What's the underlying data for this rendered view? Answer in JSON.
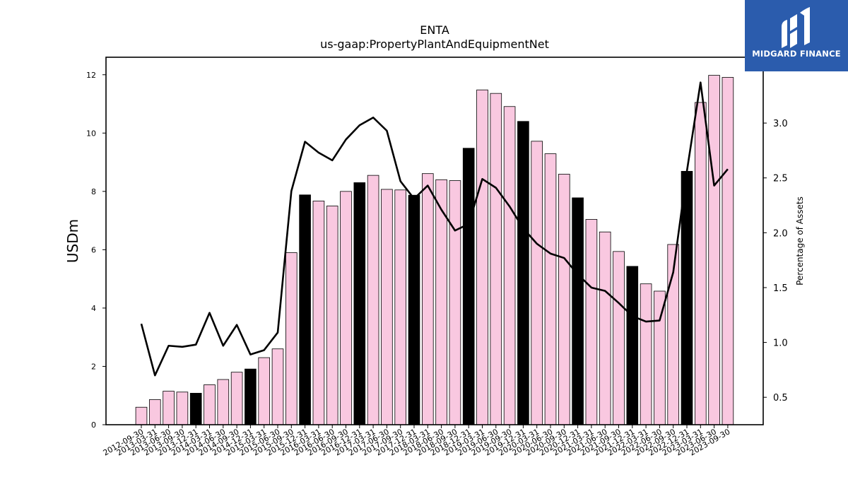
{
  "chart_data": {
    "type": "bar",
    "title": "ENTA",
    "subtitle": "us-gaap:PropertyPlantAndEquipmentNet",
    "ylabel": "USDm",
    "y2label": "Percentage of Assets",
    "ylim": [
      0,
      12.6
    ],
    "y2lim": [
      0.25,
      3.6
    ],
    "yticks": [
      0,
      2,
      4,
      6,
      8,
      10,
      12
    ],
    "y2ticks": [
      "0.5",
      "1.0",
      "1.5",
      "2.0",
      "2.5",
      "3.0"
    ],
    "grid": false,
    "categories": [
      "2012-09-30",
      "2013-03-31",
      "2013-06-30",
      "2013-09-30",
      "2013-12-31",
      "2014-03-31",
      "2014-06-30",
      "2014-09-30",
      "2014-12-31",
      "2015-03-31",
      "2015-06-30",
      "2015-09-30",
      "2015-12-31",
      "2016-03-31",
      "2016-06-30",
      "2016-09-30",
      "2016-12-31",
      "2017-03-31",
      "2017-06-30",
      "2017-09-30",
      "2017-12-31",
      "2018-03-31",
      "2018-06-30",
      "2018-09-30",
      "2018-12-31",
      "2019-03-31",
      "2019-06-30",
      "2019-09-30",
      "2019-12-31",
      "2020-03-31",
      "2020-06-30",
      "2020-09-30",
      "2020-12-31",
      "2021-03-31",
      "2021-06-30",
      "2021-09-30",
      "2021-12-31",
      "2022-03-31",
      "2022-06-30",
      "2022-09-30",
      "2022-12-31",
      "2023-03-31",
      "2023-06-30",
      "2023-09-30"
    ],
    "series": [
      {
        "type": "bar",
        "values": [
          0.6,
          0.86,
          1.15,
          1.12,
          1.08,
          1.37,
          1.55,
          1.8,
          1.91,
          2.3,
          2.6,
          5.9,
          7.88,
          7.67,
          7.5,
          8.0,
          8.3,
          8.55,
          8.07,
          8.05,
          7.87,
          8.61,
          8.4,
          8.37,
          9.48,
          11.48,
          11.36,
          10.91,
          10.4,
          9.72,
          9.29,
          8.59,
          7.78,
          7.04,
          6.61,
          5.94,
          5.43,
          4.83,
          4.58,
          6.18,
          8.69,
          11.05,
          11.98,
          11.91
        ],
        "highlight_color": "#000000",
        "color": "#f9c8e0",
        "highlight_categories": [
          "2013-12-31",
          "2014-12-31",
          "2015-12-31",
          "2016-12-31",
          "2017-12-31",
          "2018-12-31",
          "2019-12-31",
          "2020-12-31",
          "2021-12-31",
          "2022-12-31"
        ]
      },
      {
        "type": "line",
        "axis": "right",
        "color": "#000000",
        "values": [
          1.17,
          0.7,
          0.97,
          0.96,
          0.98,
          1.27,
          0.97,
          1.16,
          0.89,
          0.93,
          1.09,
          2.38,
          2.83,
          2.73,
          2.66,
          2.85,
          2.98,
          3.05,
          2.93,
          2.47,
          2.31,
          2.43,
          2.21,
          2.02,
          2.08,
          2.49,
          2.41,
          2.24,
          2.04,
          1.9,
          1.81,
          1.77,
          1.62,
          1.5,
          1.47,
          1.36,
          1.24,
          1.19,
          1.2,
          1.64,
          2.56,
          3.37,
          2.43,
          2.58
        ]
      }
    ]
  },
  "logo": {
    "name": "midgard-logo-icon",
    "text": "MIDGARD FINANCE"
  }
}
